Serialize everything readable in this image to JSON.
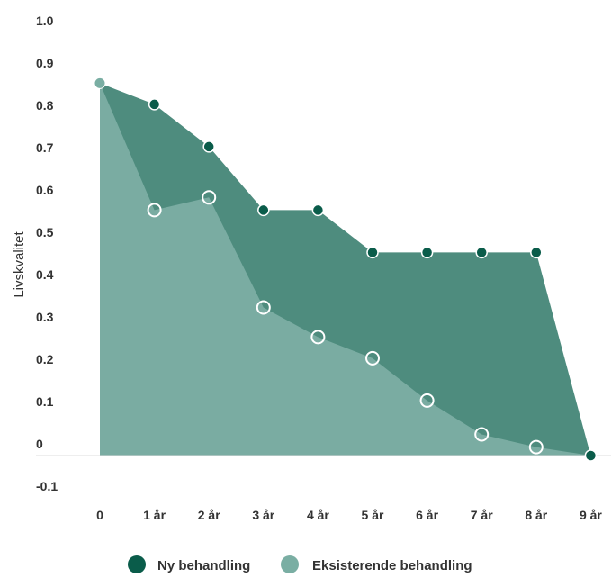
{
  "chart_data": {
    "type": "area",
    "title": "",
    "xlabel": "",
    "ylabel": "Livskvalitet",
    "categories": [
      "0",
      "1 år",
      "2 år",
      "3 år",
      "4 år",
      "5 år",
      "6 år",
      "7 år",
      "8 år",
      "9 år"
    ],
    "yticks": [
      "1.0",
      "0.9",
      "0.8",
      "0.7",
      "0.6",
      "0.5",
      "0.4",
      "0.3",
      "0.2",
      "0.1",
      "0",
      "-0.1"
    ],
    "ylim": [
      -0.1,
      1.0
    ],
    "grid": false,
    "legend_position": "bottom",
    "series": [
      {
        "name": "Ny behandling",
        "color": "#0a5c4a",
        "fill": "#4e8c7e",
        "values": [
          0.88,
          0.83,
          0.73,
          0.58,
          0.58,
          0.48,
          0.48,
          0.48,
          0.48,
          0.0
        ]
      },
      {
        "name": "Eksisterende behandling",
        "color": "#7aaea3",
        "fill": "#7aaca2",
        "values": [
          0.88,
          0.58,
          0.61,
          0.35,
          0.28,
          0.23,
          0.13,
          0.05,
          0.02,
          0.0
        ]
      }
    ]
  }
}
